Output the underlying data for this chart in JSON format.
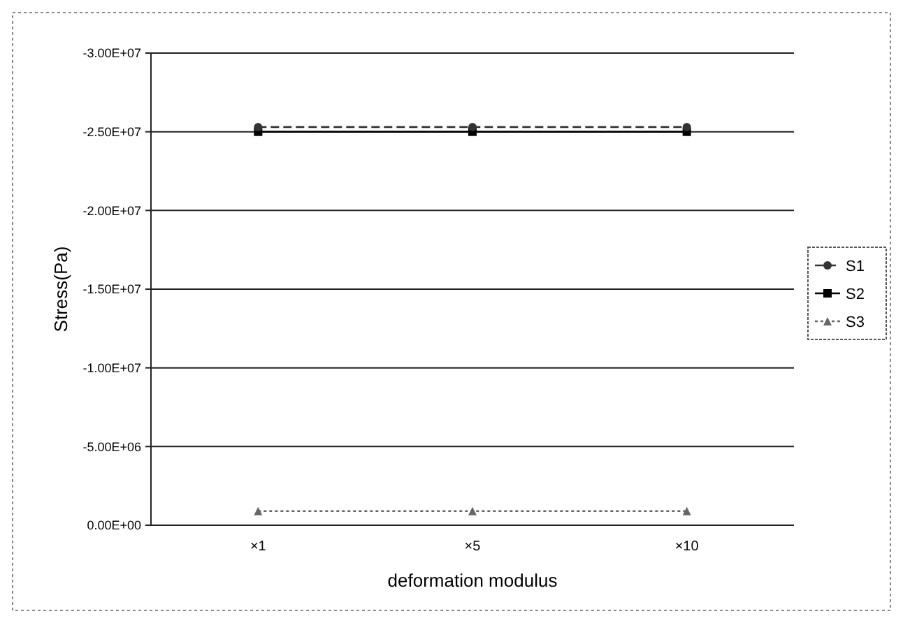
{
  "chart_data": {
    "type": "line",
    "xlabel": "deformation modulus",
    "ylabel": "Stress(Pa)",
    "categories": [
      "×1",
      "×5",
      "×10"
    ],
    "series": [
      {
        "name": "S1",
        "color": "#333333",
        "values": [
          -25300000,
          -25300000,
          -25300000
        ],
        "marker": "circle",
        "line_style": "dashed"
      },
      {
        "name": "S2",
        "color": "#000000",
        "values": [
          -25000000,
          -25000000,
          -25000000
        ],
        "marker": "square",
        "line_style": "solid"
      },
      {
        "name": "S3",
        "color": "#666666",
        "values": [
          -900000,
          -900000,
          -900000
        ],
        "marker": "triangle",
        "line_style": "dotted"
      }
    ],
    "ylim": [
      0,
      -30000000
    ],
    "yticks": [
      {
        "value": -30000000,
        "label": "-3.00E+07"
      },
      {
        "value": -25000000,
        "label": "-2.50E+07"
      },
      {
        "value": -20000000,
        "label": "-2.00E+07"
      },
      {
        "value": -15000000,
        "label": "-1.50E+07"
      },
      {
        "value": -10000000,
        "label": "-1.00E+07"
      },
      {
        "value": -5000000,
        "label": "-5.00E+06"
      },
      {
        "value": 0,
        "label": "0.00E+00"
      }
    ],
    "grid": "y",
    "legend": "right"
  }
}
